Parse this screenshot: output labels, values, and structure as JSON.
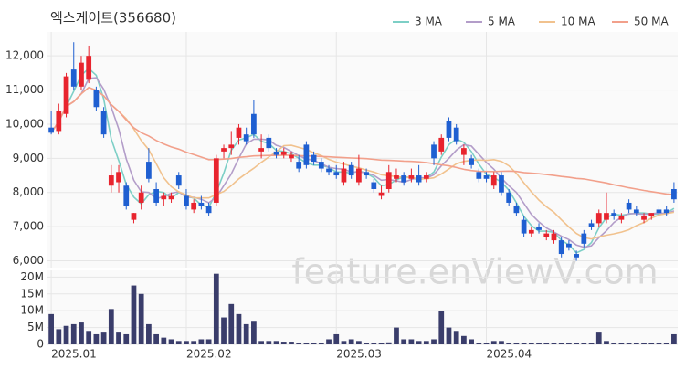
{
  "chart_data": {
    "type": "candlestick",
    "title": "엑스게이트(356680)",
    "watermark": "feature.enViewV.com",
    "up_color": "#e8242e",
    "down_color": "#1f5fd1",
    "volume_color": "#3a3d6b",
    "grid": true,
    "legend": "top-right",
    "ohlc": [
      [
        9900,
        10400,
        9700,
        9750
      ],
      [
        9800,
        10600,
        9700,
        10400
      ],
      [
        10300,
        11500,
        10200,
        11400
      ],
      [
        11600,
        12400,
        11000,
        11100
      ],
      [
        11100,
        12000,
        11000,
        11800
      ],
      [
        11300,
        12300,
        11200,
        12000
      ],
      [
        11000,
        11100,
        10400,
        10500
      ],
      [
        10400,
        10500,
        9600,
        9700
      ],
      [
        8200,
        8800,
        8000,
        8500
      ],
      [
        8300,
        8800,
        8000,
        8600
      ],
      [
        8200,
        8300,
        7500,
        7600
      ],
      [
        7200,
        7400,
        7100,
        7400
      ],
      [
        7700,
        8200,
        7500,
        8000
      ],
      [
        8900,
        9300,
        8300,
        8400
      ],
      [
        8100,
        8300,
        7600,
        7700
      ],
      [
        7800,
        8000,
        7600,
        7900
      ],
      [
        7800,
        8000,
        7700,
        7900
      ],
      [
        8500,
        8600,
        8100,
        8200
      ],
      [
        7900,
        8100,
        7500,
        7600
      ],
      [
        7500,
        7800,
        7400,
        7700
      ],
      [
        7700,
        7900,
        7500,
        7600
      ],
      [
        7600,
        7700,
        7300,
        7400
      ],
      [
        7700,
        9100,
        7600,
        9000
      ],
      [
        9200,
        9400,
        9000,
        9300
      ],
      [
        9300,
        9800,
        9100,
        9400
      ],
      [
        9600,
        10000,
        9400,
        9900
      ],
      [
        9700,
        9900,
        9400,
        9500
      ],
      [
        10300,
        10700,
        9600,
        9700
      ],
      [
        9200,
        9700,
        9000,
        9300
      ],
      [
        9600,
        9700,
        9200,
        9300
      ],
      [
        9200,
        9300,
        9000,
        9100
      ],
      [
        9100,
        9300,
        9000,
        9200
      ],
      [
        9000,
        9200,
        8900,
        9100
      ],
      [
        8900,
        9100,
        8600,
        8700
      ],
      [
        9400,
        9500,
        8700,
        8800
      ],
      [
        9100,
        9200,
        8800,
        8900
      ],
      [
        8900,
        9000,
        8600,
        8700
      ],
      [
        8700,
        8800,
        8500,
        8600
      ],
      [
        8600,
        8800,
        8400,
        8500
      ],
      [
        8300,
        8900,
        8200,
        8700
      ],
      [
        8800,
        8900,
        8400,
        8500
      ],
      [
        8300,
        9100,
        8200,
        8700
      ],
      [
        8600,
        8700,
        8400,
        8500
      ],
      [
        8300,
        8400,
        8000,
        8100
      ],
      [
        7900,
        8200,
        7800,
        8000
      ],
      [
        8100,
        8800,
        8000,
        8600
      ],
      [
        8400,
        8700,
        8300,
        8500
      ],
      [
        8500,
        8600,
        8200,
        8300
      ],
      [
        8400,
        8700,
        8300,
        8500
      ],
      [
        8500,
        8800,
        8200,
        8300
      ],
      [
        8400,
        8600,
        8300,
        8500
      ],
      [
        9400,
        9500,
        8800,
        9000
      ],
      [
        9200,
        9700,
        9100,
        9600
      ],
      [
        10100,
        10200,
        9500,
        9600
      ],
      [
        9900,
        10000,
        9400,
        9500
      ],
      [
        9100,
        9400,
        8800,
        9300
      ],
      [
        9000,
        9100,
        8700,
        8800
      ],
      [
        8600,
        8700,
        8300,
        8400
      ],
      [
        8500,
        8600,
        8300,
        8400
      ],
      [
        8200,
        8600,
        8100,
        8500
      ],
      [
        8500,
        8600,
        7900,
        8000
      ],
      [
        8000,
        8100,
        7600,
        7700
      ],
      [
        7600,
        7700,
        7300,
        7400
      ],
      [
        7200,
        7300,
        6700,
        6800
      ],
      [
        6800,
        7000,
        6700,
        6900
      ],
      [
        7000,
        7100,
        6800,
        6900
      ],
      [
        6700,
        6900,
        6600,
        6800
      ],
      [
        6600,
        6900,
        6500,
        6800
      ],
      [
        6600,
        6700,
        6100,
        6200
      ],
      [
        6500,
        6600,
        6300,
        6400
      ],
      [
        6200,
        6300,
        6000,
        6100
      ],
      [
        6800,
        6900,
        6400,
        6500
      ],
      [
        7100,
        7200,
        6900,
        7000
      ],
      [
        7100,
        7500,
        7000,
        7400
      ],
      [
        7200,
        8000,
        7100,
        7400
      ],
      [
        7400,
        7500,
        7200,
        7300
      ],
      [
        7200,
        7400,
        7100,
        7300
      ],
      [
        7700,
        7800,
        7400,
        7500
      ],
      [
        7500,
        7600,
        7300,
        7400
      ],
      [
        7200,
        7400,
        7100,
        7300
      ],
      [
        7300,
        7400,
        7200,
        7400
      ],
      [
        7500,
        7600,
        7300,
        7400
      ],
      [
        7500,
        7600,
        7300,
        7400
      ],
      [
        8100,
        8300,
        7700,
        7800
      ]
    ],
    "volume": [
      9,
      4.5,
      5.5,
      6,
      6.5,
      4,
      3,
      3.5,
      10.5,
      3.5,
      3,
      17.5,
      15,
      6,
      3,
      2,
      1.5,
      1,
      1,
      1,
      1.5,
      1.5,
      21,
      8,
      12,
      9,
      6,
      7,
      1,
      1,
      1,
      0.8,
      0.8,
      0.5,
      0.5,
      0.5,
      0.5,
      1.5,
      3,
      1,
      1.5,
      1,
      0.5,
      0.5,
      0.5,
      0.6,
      5,
      1.5,
      1.5,
      1,
      1,
      1.5,
      10,
      5,
      4,
      2.5,
      1.5,
      0.5,
      0.5,
      1,
      1,
      0.5,
      0.5,
      0.5,
      0.4,
      0.3,
      0.4,
      0.5,
      0.4,
      0.3,
      0.5,
      0.5,
      0.5,
      3.5,
      1,
      0.5,
      0.5,
      0.5,
      0.5,
      0.4,
      0.4,
      0.4,
      0.4,
      3
    ],
    "moving_averages": [
      {
        "name": "3 MA",
        "color": "#7dcfc6"
      },
      {
        "name": "5 MA",
        "color": "#b39dc9"
      },
      {
        "name": "10 MA",
        "color": "#f1c28e"
      },
      {
        "name": "50 MA",
        "color": "#f2a08b"
      }
    ],
    "ylim": [
      5800,
      12700
    ],
    "yticks": [
      {
        "value": 6000,
        "label": "6,000"
      },
      {
        "value": 7000,
        "label": "7,000"
      },
      {
        "value": 8000,
        "label": "8,000"
      },
      {
        "value": 9000,
        "label": "9,000"
      },
      {
        "value": 10000,
        "label": "10,000"
      },
      {
        "value": 11000,
        "label": "11,000"
      },
      {
        "value": 12000,
        "label": "12,000"
      }
    ],
    "volume_ylim": [
      0,
      22
    ],
    "volume_yticks": [
      0,
      {
        "value": 5,
        "label": "5M"
      },
      {
        "value": 10,
        "label": "10M"
      },
      {
        "value": 15,
        "label": "15M"
      },
      {
        "value": 20,
        "label": "20M"
      }
    ],
    "xticks": [
      {
        "value": 0,
        "label": "2025.01"
      },
      {
        "value": 18,
        "label": "2025.02"
      },
      {
        "value": 38,
        "label": "2025.03"
      },
      {
        "value": 58,
        "label": "2025.04"
      }
    ]
  }
}
